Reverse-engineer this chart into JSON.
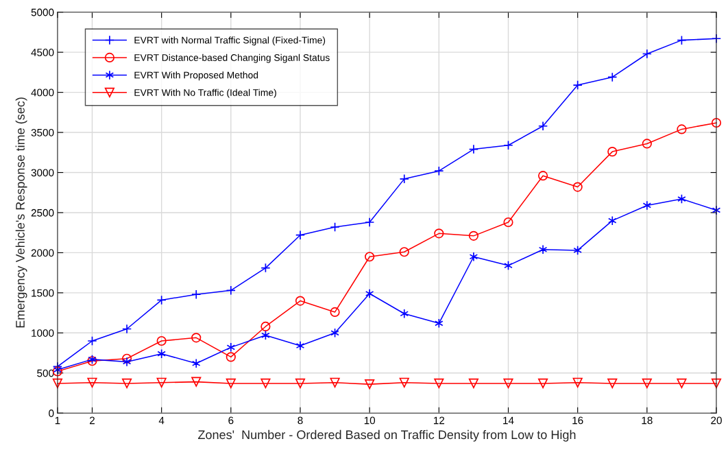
{
  "chart_data": {
    "type": "line",
    "xlabel": "Zones'  Number - Ordered Based on Traffic Density from Low to High",
    "ylabel": "Emergency Vehicle's Response time (sec)",
    "x": [
      1,
      2,
      3,
      4,
      5,
      6,
      7,
      8,
      9,
      10,
      11,
      12,
      13,
      14,
      15,
      16,
      17,
      18,
      19,
      20
    ],
    "series": [
      {
        "name": "EVRT with Normal Traffic Signal (Fixed-Time)",
        "color": "#0000ff",
        "marker": "plus",
        "values": [
          580,
          900,
          1050,
          1410,
          1480,
          1530,
          1810,
          2220,
          2320,
          2380,
          2920,
          3020,
          3290,
          3340,
          3580,
          4090,
          4190,
          4480,
          4650,
          4670
        ]
      },
      {
        "name": "EVRT Distance-based Changing Siganl Status",
        "color": "#ff0000",
        "marker": "circle",
        "values": [
          520,
          650,
          680,
          900,
          940,
          700,
          1080,
          1400,
          1260,
          1950,
          2010,
          2240,
          2210,
          2380,
          2960,
          2820,
          3260,
          3360,
          3540,
          3620
        ]
      },
      {
        "name": "EVRT With Proposed Method",
        "color": "#0000ff",
        "marker": "cross",
        "values": [
          540,
          670,
          640,
          740,
          620,
          820,
          970,
          840,
          1000,
          1490,
          1240,
          1120,
          1950,
          1840,
          2040,
          2030,
          2400,
          2590,
          2670,
          2530
        ]
      },
      {
        "name": "EVRT With No Traffic (Ideal Time)",
        "color": "#ff0000",
        "marker": "triangle",
        "values": [
          370,
          380,
          370,
          380,
          390,
          370,
          370,
          370,
          380,
          360,
          380,
          370,
          370,
          370,
          370,
          380,
          370,
          370,
          370,
          370
        ]
      }
    ],
    "xlim": [
      1,
      20
    ],
    "xticks": [
      1,
      2,
      4,
      6,
      8,
      10,
      12,
      14,
      16,
      18,
      20
    ],
    "ylim": [
      0,
      5000
    ],
    "yticks": [
      0,
      500,
      1000,
      1500,
      2000,
      2500,
      3000,
      3500,
      4000,
      4500,
      5000
    ],
    "grid": true,
    "legend": "top left",
    "line_style": "solid"
  }
}
